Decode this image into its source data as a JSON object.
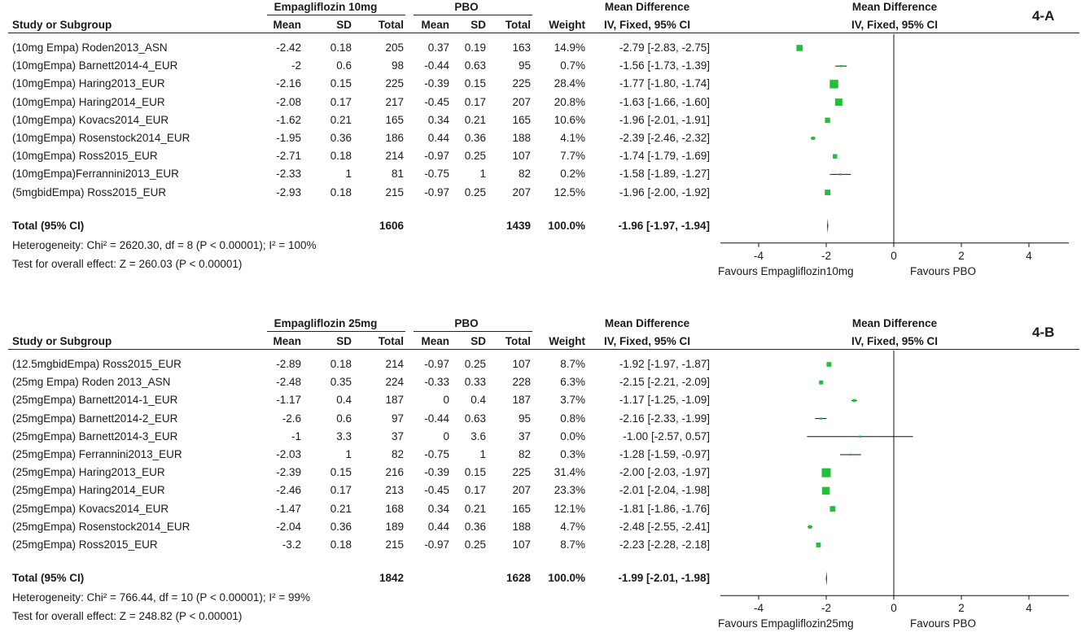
{
  "headers": {
    "study": "Study or Subgroup",
    "mean": "Mean",
    "sd": "SD",
    "total": "Total",
    "weight": "Weight",
    "md_title": "Mean Difference",
    "md_method": "IV, Fixed, 95% CI"
  },
  "panels": [
    {
      "tag": "4-A",
      "treat_label": "Empagliflozin 10mg",
      "ctrl_label": "PBO",
      "rows": [
        {
          "study": "(10mg Empa) Roden2013_ASN",
          "m1": "-2.42",
          "sd1": "0.18",
          "n1": "205",
          "m2": "0.37",
          "sd2": "0.19",
          "n2": "163",
          "w": "14.9%",
          "ci": "-2.79 [-2.83, -2.75]"
        },
        {
          "study": "(10mgEmpa) Barnett2014-4_EUR",
          "m1": "-2",
          "sd1": "0.6",
          "n1": "98",
          "m2": "-0.44",
          "sd2": "0.63",
          "n2": "95",
          "w": "0.7%",
          "ci": "-1.56 [-1.73, -1.39]"
        },
        {
          "study": "(10mgEmpa) Haring2013_EUR",
          "m1": "-2.16",
          "sd1": "0.15",
          "n1": "225",
          "m2": "-0.39",
          "sd2": "0.15",
          "n2": "225",
          "w": "28.4%",
          "ci": "-1.77 [-1.80, -1.74]"
        },
        {
          "study": "(10mgEmpa) Haring2014_EUR",
          "m1": "-2.08",
          "sd1": "0.17",
          "n1": "217",
          "m2": "-0.45",
          "sd2": "0.17",
          "n2": "207",
          "w": "20.8%",
          "ci": "-1.63 [-1.66, -1.60]"
        },
        {
          "study": "(10mgEmpa) Kovacs2014_EUR",
          "m1": "-1.62",
          "sd1": "0.21",
          "n1": "165",
          "m2": "0.34",
          "sd2": "0.21",
          "n2": "165",
          "w": "10.6%",
          "ci": "-1.96 [-2.01, -1.91]"
        },
        {
          "study": "(10mgEmpa) Rosenstock2014_EUR",
          "m1": "-1.95",
          "sd1": "0.36",
          "n1": "186",
          "m2": "0.44",
          "sd2": "0.36",
          "n2": "188",
          "w": "4.1%",
          "ci": "-2.39 [-2.46, -2.32]"
        },
        {
          "study": "(10mgEmpa) Ross2015_EUR",
          "m1": "-2.71",
          "sd1": "0.18",
          "n1": "214",
          "m2": "-0.97",
          "sd2": "0.25",
          "n2": "107",
          "w": "7.7%",
          "ci": "-1.74 [-1.79, -1.69]"
        },
        {
          "study": "(10mgEmpa)Ferrannini2013_EUR",
          "m1": "-2.33",
          "sd1": "1",
          "n1": "81",
          "m2": "-0.75",
          "sd2": "1",
          "n2": "82",
          "w": "0.2%",
          "ci": "-1.58 [-1.89, -1.27]"
        },
        {
          "study": "(5mgbidEmpa) Ross2015_EUR",
          "m1": "-2.93",
          "sd1": "0.18",
          "n1": "215",
          "m2": "-0.97",
          "sd2": "0.25",
          "n2": "207",
          "w": "12.5%",
          "ci": "-1.96 [-2.00, -1.92]"
        }
      ],
      "total": {
        "label": "Total (95% CI)",
        "n1": "1606",
        "n2": "1439",
        "w": "100.0%",
        "ci": "-1.96 [-1.97, -1.94]"
      },
      "heterogeneity": "Heterogeneity: Chi² = 2620.30, df = 8 (P < 0.00001); I² = 100%",
      "overall": "Test for overall effect: Z = 260.03 (P < 0.00001)",
      "favours_left": "Favours Empagliflozin10mg",
      "favours_right": "Favours PBO"
    },
    {
      "tag": "4-B",
      "treat_label": "Empagliflozin 25mg",
      "ctrl_label": "PBO",
      "rows": [
        {
          "study": "(12.5mgbidEmpa) Ross2015_EUR",
          "m1": "-2.89",
          "sd1": "0.18",
          "n1": "214",
          "m2": "-0.97",
          "sd2": "0.25",
          "n2": "107",
          "w": "8.7%",
          "ci": "-1.92 [-1.97, -1.87]"
        },
        {
          "study": "(25mg Empa) Roden 2013_ASN",
          "m1": "-2.48",
          "sd1": "0.35",
          "n1": "224",
          "m2": "-0.33",
          "sd2": "0.33",
          "n2": "228",
          "w": "6.3%",
          "ci": "-2.15 [-2.21, -2.09]"
        },
        {
          "study": "(25mgEmpa) Barnett2014-1_EUR",
          "m1": "-1.17",
          "sd1": "0.4",
          "n1": "187",
          "m2": "0",
          "sd2": "0.4",
          "n2": "187",
          "w": "3.7%",
          "ci": "-1.17 [-1.25, -1.09]"
        },
        {
          "study": "(25mgEmpa) Barnett2014-2_EUR",
          "m1": "-2.6",
          "sd1": "0.6",
          "n1": "97",
          "m2": "-0.44",
          "sd2": "0.63",
          "n2": "95",
          "w": "0.8%",
          "ci": "-2.16 [-2.33, -1.99]"
        },
        {
          "study": "(25mgEmpa) Barnett2014-3_EUR",
          "m1": "-1",
          "sd1": "3.3",
          "n1": "37",
          "m2": "0",
          "sd2": "3.6",
          "n2": "37",
          "w": "0.0%",
          "ci": "-1.00 [-2.57, 0.57]"
        },
        {
          "study": "(25mgEmpa) Ferrannini2013_EUR",
          "m1": "-2.03",
          "sd1": "1",
          "n1": "82",
          "m2": "-0.75",
          "sd2": "1",
          "n2": "82",
          "w": "0.3%",
          "ci": "-1.28 [-1.59, -0.97]"
        },
        {
          "study": "(25mgEmpa) Haring2013_EUR",
          "m1": "-2.39",
          "sd1": "0.15",
          "n1": "216",
          "m2": "-0.39",
          "sd2": "0.15",
          "n2": "225",
          "w": "31.4%",
          "ci": "-2.00 [-2.03, -1.97]"
        },
        {
          "study": "(25mgEmpa) Haring2014_EUR",
          "m1": "-2.46",
          "sd1": "0.17",
          "n1": "213",
          "m2": "-0.45",
          "sd2": "0.17",
          "n2": "207",
          "w": "23.3%",
          "ci": "-2.01 [-2.04, -1.98]"
        },
        {
          "study": "(25mgEmpa) Kovacs2014_EUR",
          "m1": "-1.47",
          "sd1": "0.21",
          "n1": "168",
          "m2": "0.34",
          "sd2": "0.21",
          "n2": "165",
          "w": "12.1%",
          "ci": "-1.81 [-1.86, -1.76]"
        },
        {
          "study": "(25mgEmpa) Rosenstock2014_EUR",
          "m1": "-2.04",
          "sd1": "0.36",
          "n1": "189",
          "m2": "0.44",
          "sd2": "0.36",
          "n2": "188",
          "w": "4.7%",
          "ci": "-2.48 [-2.55, -2.41]"
        },
        {
          "study": "(25mgEmpa) Ross2015_EUR",
          "m1": "-3.2",
          "sd1": "0.18",
          "n1": "215",
          "m2": "-0.97",
          "sd2": "0.25",
          "n2": "107",
          "w": "8.7%",
          "ci": "-2.23 [-2.28, -2.18]"
        }
      ],
      "total": {
        "label": "Total (95% CI)",
        "n1": "1842",
        "n2": "1628",
        "w": "100.0%",
        "ci": "-1.99 [-2.01, -1.98]"
      },
      "heterogeneity": "Heterogeneity: Chi² = 766.44, df = 10 (P < 0.00001); I² = 99%",
      "overall": "Test for overall effect: Z = 248.82 (P < 0.00001)",
      "favours_left": "Favours Empagliflozin25mg",
      "favours_right": "Favours PBO"
    }
  ],
  "chart_data": [
    {
      "type": "forest",
      "title": "4-A",
      "xlim": [
        -5,
        5
      ],
      "xticks": [
        -4,
        -2,
        0,
        2,
        4
      ],
      "marker_color": "#22c03a",
      "studies": [
        {
          "name": "(10mg Empa) Roden2013_ASN",
          "md": -2.79,
          "lo": -2.83,
          "hi": -2.75,
          "weight": 14.9
        },
        {
          "name": "(10mgEmpa) Barnett2014-4_EUR",
          "md": -1.56,
          "lo": -1.73,
          "hi": -1.39,
          "weight": 0.7
        },
        {
          "name": "(10mgEmpa) Haring2013_EUR",
          "md": -1.77,
          "lo": -1.8,
          "hi": -1.74,
          "weight": 28.4
        },
        {
          "name": "(10mgEmpa) Haring2014_EUR",
          "md": -1.63,
          "lo": -1.66,
          "hi": -1.6,
          "weight": 20.8
        },
        {
          "name": "(10mgEmpa) Kovacs2014_EUR",
          "md": -1.96,
          "lo": -2.01,
          "hi": -1.91,
          "weight": 10.6
        },
        {
          "name": "(10mgEmpa) Rosenstock2014_EUR",
          "md": -2.39,
          "lo": -2.46,
          "hi": -2.32,
          "weight": 4.1
        },
        {
          "name": "(10mgEmpa) Ross2015_EUR",
          "md": -1.74,
          "lo": -1.79,
          "hi": -1.69,
          "weight": 7.7
        },
        {
          "name": "(10mgEmpa)Ferrannini2013_EUR",
          "md": -1.58,
          "lo": -1.89,
          "hi": -1.27,
          "weight": 0.2
        },
        {
          "name": "(5mgbidEmpa) Ross2015_EUR",
          "md": -1.96,
          "lo": -2.0,
          "hi": -1.92,
          "weight": 12.5
        }
      ],
      "pooled": {
        "md": -1.96,
        "lo": -1.97,
        "hi": -1.94
      }
    },
    {
      "type": "forest",
      "title": "4-B",
      "xlim": [
        -5,
        5
      ],
      "xticks": [
        -4,
        -2,
        0,
        2,
        4
      ],
      "marker_color": "#22c03a",
      "studies": [
        {
          "name": "(12.5mgbidEmpa) Ross2015_EUR",
          "md": -1.92,
          "lo": -1.97,
          "hi": -1.87,
          "weight": 8.7
        },
        {
          "name": "(25mg Empa) Roden 2013_ASN",
          "md": -2.15,
          "lo": -2.21,
          "hi": -2.09,
          "weight": 6.3
        },
        {
          "name": "(25mgEmpa) Barnett2014-1_EUR",
          "md": -1.17,
          "lo": -1.25,
          "hi": -1.09,
          "weight": 3.7
        },
        {
          "name": "(25mgEmpa) Barnett2014-2_EUR",
          "md": -2.16,
          "lo": -2.33,
          "hi": -1.99,
          "weight": 0.8
        },
        {
          "name": "(25mgEmpa) Barnett2014-3_EUR",
          "md": -1.0,
          "lo": -2.57,
          "hi": 0.57,
          "weight": 0.0
        },
        {
          "name": "(25mgEmpa) Ferrannini2013_EUR",
          "md": -1.28,
          "lo": -1.59,
          "hi": -0.97,
          "weight": 0.3
        },
        {
          "name": "(25mgEmpa) Haring2013_EUR",
          "md": -2.0,
          "lo": -2.03,
          "hi": -1.97,
          "weight": 31.4
        },
        {
          "name": "(25mgEmpa) Haring2014_EUR",
          "md": -2.01,
          "lo": -2.04,
          "hi": -1.98,
          "weight": 23.3
        },
        {
          "name": "(25mgEmpa) Kovacs2014_EUR",
          "md": -1.81,
          "lo": -1.86,
          "hi": -1.76,
          "weight": 12.1
        },
        {
          "name": "(25mgEmpa) Rosenstock2014_EUR",
          "md": -2.48,
          "lo": -2.55,
          "hi": -2.41,
          "weight": 4.7
        },
        {
          "name": "(25mgEmpa) Ross2015_EUR",
          "md": -2.23,
          "lo": -2.28,
          "hi": -2.18,
          "weight": 8.7
        }
      ],
      "pooled": {
        "md": -1.99,
        "lo": -2.01,
        "hi": -1.98
      }
    }
  ]
}
